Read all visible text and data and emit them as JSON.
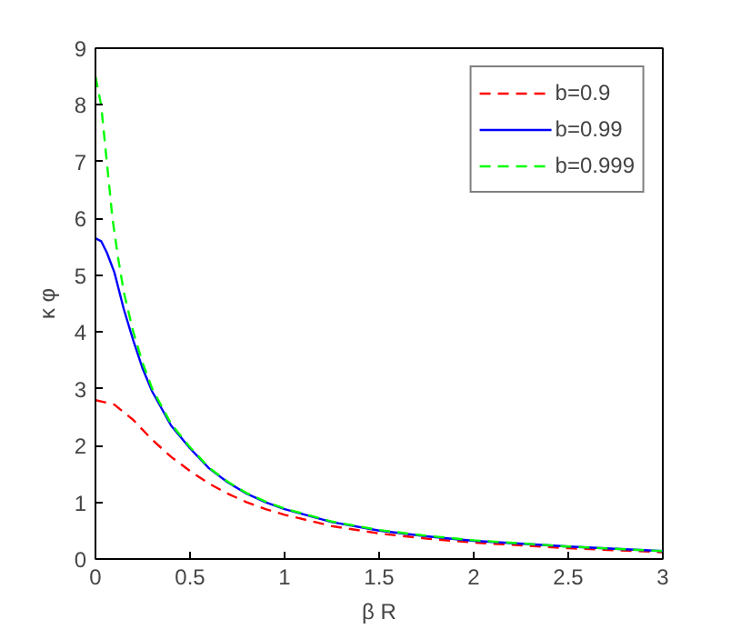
{
  "chart_data": {
    "type": "line",
    "xlabel": "β R",
    "ylabel": "κ φ",
    "xlim": [
      0,
      3
    ],
    "ylim": [
      0,
      9
    ],
    "xticks": [
      0,
      0.5,
      1,
      1.5,
      2,
      2.5,
      3
    ],
    "yticks": [
      0,
      1,
      2,
      3,
      4,
      5,
      6,
      7,
      8,
      9
    ],
    "grid": false,
    "legend": "top right",
    "series": [
      {
        "name": "b=0.9",
        "color": "#ff0000",
        "line_style": "dashed",
        "x": [
          0,
          0.1,
          0.2,
          0.3,
          0.4,
          0.5,
          0.6,
          0.7,
          0.8,
          0.9,
          1.0,
          1.25,
          1.5,
          1.75,
          2,
          2.5,
          3
        ],
        "values": [
          2.8,
          2.72,
          2.45,
          2.1,
          1.8,
          1.55,
          1.33,
          1.15,
          1.0,
          0.88,
          0.78,
          0.58,
          0.45,
          0.36,
          0.29,
          0.19,
          0.12
        ]
      },
      {
        "name": "b=0.99",
        "color": "#0000ff",
        "line_style": "solid",
        "x": [
          0,
          0.03,
          0.06,
          0.1,
          0.15,
          0.2,
          0.25,
          0.3,
          0.4,
          0.5,
          0.6,
          0.7,
          0.8,
          0.9,
          1.0,
          1.25,
          1.5,
          1.75,
          2,
          2.5,
          3
        ],
        "values": [
          5.65,
          5.6,
          5.4,
          5.05,
          4.4,
          3.85,
          3.35,
          2.95,
          2.35,
          1.95,
          1.6,
          1.35,
          1.15,
          1.0,
          0.88,
          0.65,
          0.5,
          0.4,
          0.32,
          0.22,
          0.14
        ]
      },
      {
        "name": "b=0.999",
        "color": "#00ff00",
        "line_style": "dashed",
        "x": [
          0,
          0.03,
          0.06,
          0.09,
          0.12,
          0.15,
          0.2,
          0.25,
          0.3,
          0.4,
          0.5,
          0.6,
          0.7,
          0.8,
          0.9,
          1.0,
          1.25,
          1.5,
          1.75,
          2,
          2.5,
          3
        ],
        "values": [
          8.5,
          8.0,
          7.0,
          6.0,
          5.3,
          4.7,
          4.0,
          3.45,
          3.0,
          2.38,
          1.97,
          1.61,
          1.36,
          1.16,
          1.01,
          0.89,
          0.66,
          0.51,
          0.41,
          0.33,
          0.22,
          0.14
        ]
      }
    ]
  }
}
